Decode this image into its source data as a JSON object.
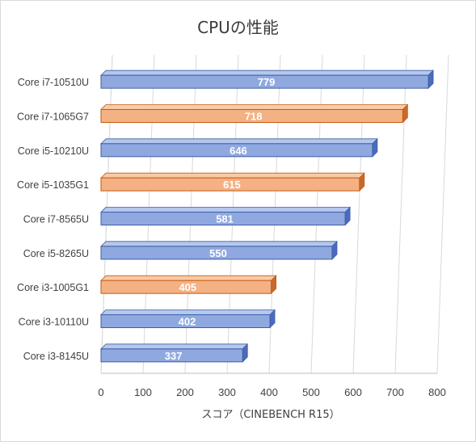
{
  "chart_data": {
    "type": "bar",
    "title": "CPUの性能",
    "xlabel": "スコア（CINEBENCH R15）",
    "ylabel": "",
    "categories": [
      "Core i7-10510U",
      "Core i7-1065G7",
      "Core i5-10210U",
      "Core i5-1035G1",
      "Core i7-8565U",
      "Core i5-8265U",
      "Core i3-1005G1",
      "Core i3-10110U",
      "Core i3-8145U"
    ],
    "values": [
      779,
      718,
      646,
      615,
      581,
      550,
      405,
      402,
      337
    ],
    "highlight": [
      false,
      true,
      false,
      true,
      false,
      false,
      true,
      false,
      false
    ],
    "colors": {
      "default_face": "#8fa9e0",
      "default_top": "#b4c7ef",
      "default_side": "#4a6bbf",
      "default_edge": "#3f5f9f",
      "highlight_face": "#f4b183",
      "highlight_top": "#f8cba6",
      "highlight_side": "#c86a2c",
      "highlight_edge": "#c55a11"
    },
    "xlim": [
      0,
      800
    ],
    "xticks": [
      0,
      100,
      200,
      300,
      400,
      500,
      600,
      700,
      800
    ],
    "grid": true,
    "orientation": "horizontal",
    "data_labels": true
  }
}
